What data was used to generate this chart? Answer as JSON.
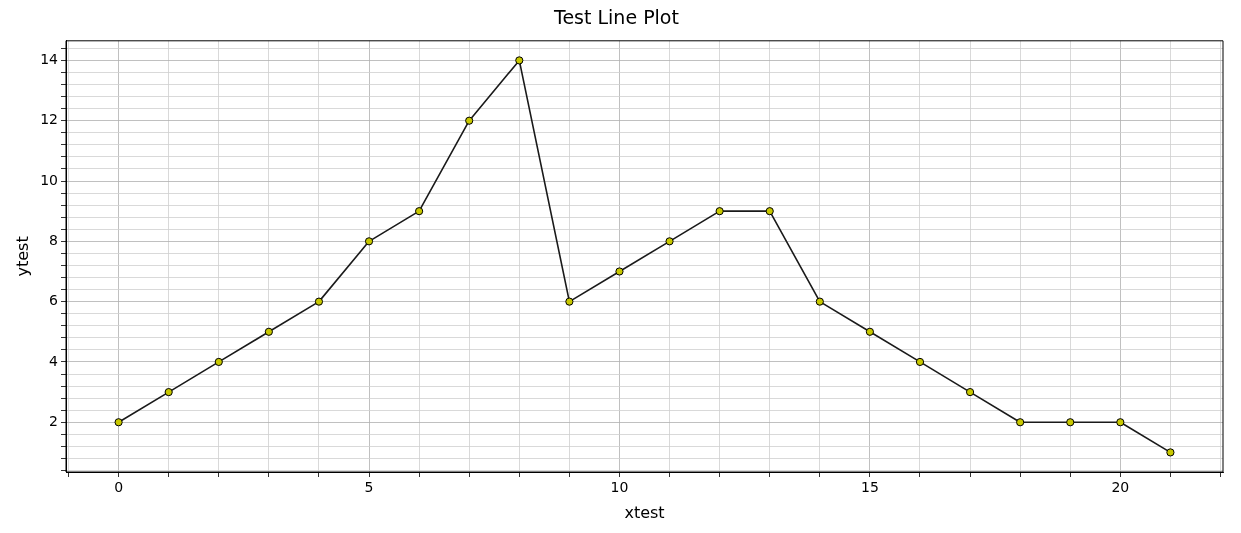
{
  "chart_data": {
    "type": "line",
    "title": "Test Line Plot",
    "xlabel": "xtest",
    "ylabel": "ytest",
    "x": [
      0,
      1,
      2,
      3,
      4,
      5,
      6,
      7,
      8,
      9,
      10,
      11,
      12,
      13,
      14,
      15,
      16,
      17,
      18,
      19,
      20,
      21
    ],
    "series": [
      {
        "color": "#1a1a1a",
        "values": [
          2,
          3,
          4,
          5,
          6,
          8,
          9,
          12,
          14,
          6,
          7,
          8,
          9,
          9,
          6,
          5,
          4,
          3,
          2,
          2,
          2,
          1
        ]
      }
    ],
    "xlim": [
      -1.05,
      22.05
    ],
    "xticks": [
      {
        "value": -1,
        "label": null
      },
      0,
      {
        "value": 1,
        "label": null
      },
      {
        "value": 2,
        "label": null
      },
      {
        "value": 3,
        "label": null
      },
      {
        "value": 4,
        "label": null
      },
      5,
      {
        "value": 6,
        "label": null
      },
      {
        "value": 7,
        "label": null
      },
      {
        "value": 8,
        "label": null
      },
      {
        "value": 9,
        "label": null
      },
      10,
      {
        "value": 11,
        "label": null
      },
      {
        "value": 12,
        "label": null
      },
      {
        "value": 13,
        "label": null
      },
      {
        "value": 14,
        "label": null
      },
      15,
      {
        "value": 16,
        "label": null
      },
      {
        "value": 17,
        "label": null
      },
      {
        "value": 18,
        "label": null
      },
      {
        "value": 19,
        "label": null
      },
      20,
      {
        "value": 21,
        "label": null
      },
      {
        "value": 22,
        "label": null
      }
    ],
    "ylim": [
      0.35,
      14.65
    ],
    "yticks": [
      {
        "value": 0.4,
        "label": null
      },
      {
        "value": 0.8,
        "label": null
      },
      {
        "value": 1.2,
        "label": null
      },
      {
        "value": 1.6,
        "label": null
      },
      2,
      {
        "value": 2.4,
        "label": null
      },
      {
        "value": 2.8,
        "label": null
      },
      {
        "value": 3.2,
        "label": null
      },
      {
        "value": 3.6,
        "label": null
      },
      4,
      {
        "value": 4.4,
        "label": null
      },
      {
        "value": 4.8,
        "label": null
      },
      {
        "value": 5.2,
        "label": null
      },
      {
        "value": 5.6,
        "label": null
      },
      6,
      {
        "value": 6.4,
        "label": null
      },
      {
        "value": 6.8,
        "label": null
      },
      {
        "value": 7.2,
        "label": null
      },
      {
        "value": 7.6,
        "label": null
      },
      8,
      {
        "value": 8.4,
        "label": null
      },
      {
        "value": 8.8,
        "label": null
      },
      {
        "value": 9.2,
        "label": null
      },
      {
        "value": 9.6,
        "label": null
      },
      10,
      {
        "value": 10.4,
        "label": null
      },
      {
        "value": 10.8,
        "label": null
      },
      {
        "value": 11.2,
        "label": null
      },
      {
        "value": 11.6,
        "label": null
      },
      12,
      {
        "value": 12.4,
        "label": null
      },
      {
        "value": 12.8,
        "label": null
      },
      {
        "value": 13.2,
        "label": null
      },
      {
        "value": 13.6,
        "label": null
      },
      14,
      {
        "value": 14.4,
        "label": null
      }
    ],
    "grid": true,
    "marker": "circle",
    "line_style": "solid"
  }
}
